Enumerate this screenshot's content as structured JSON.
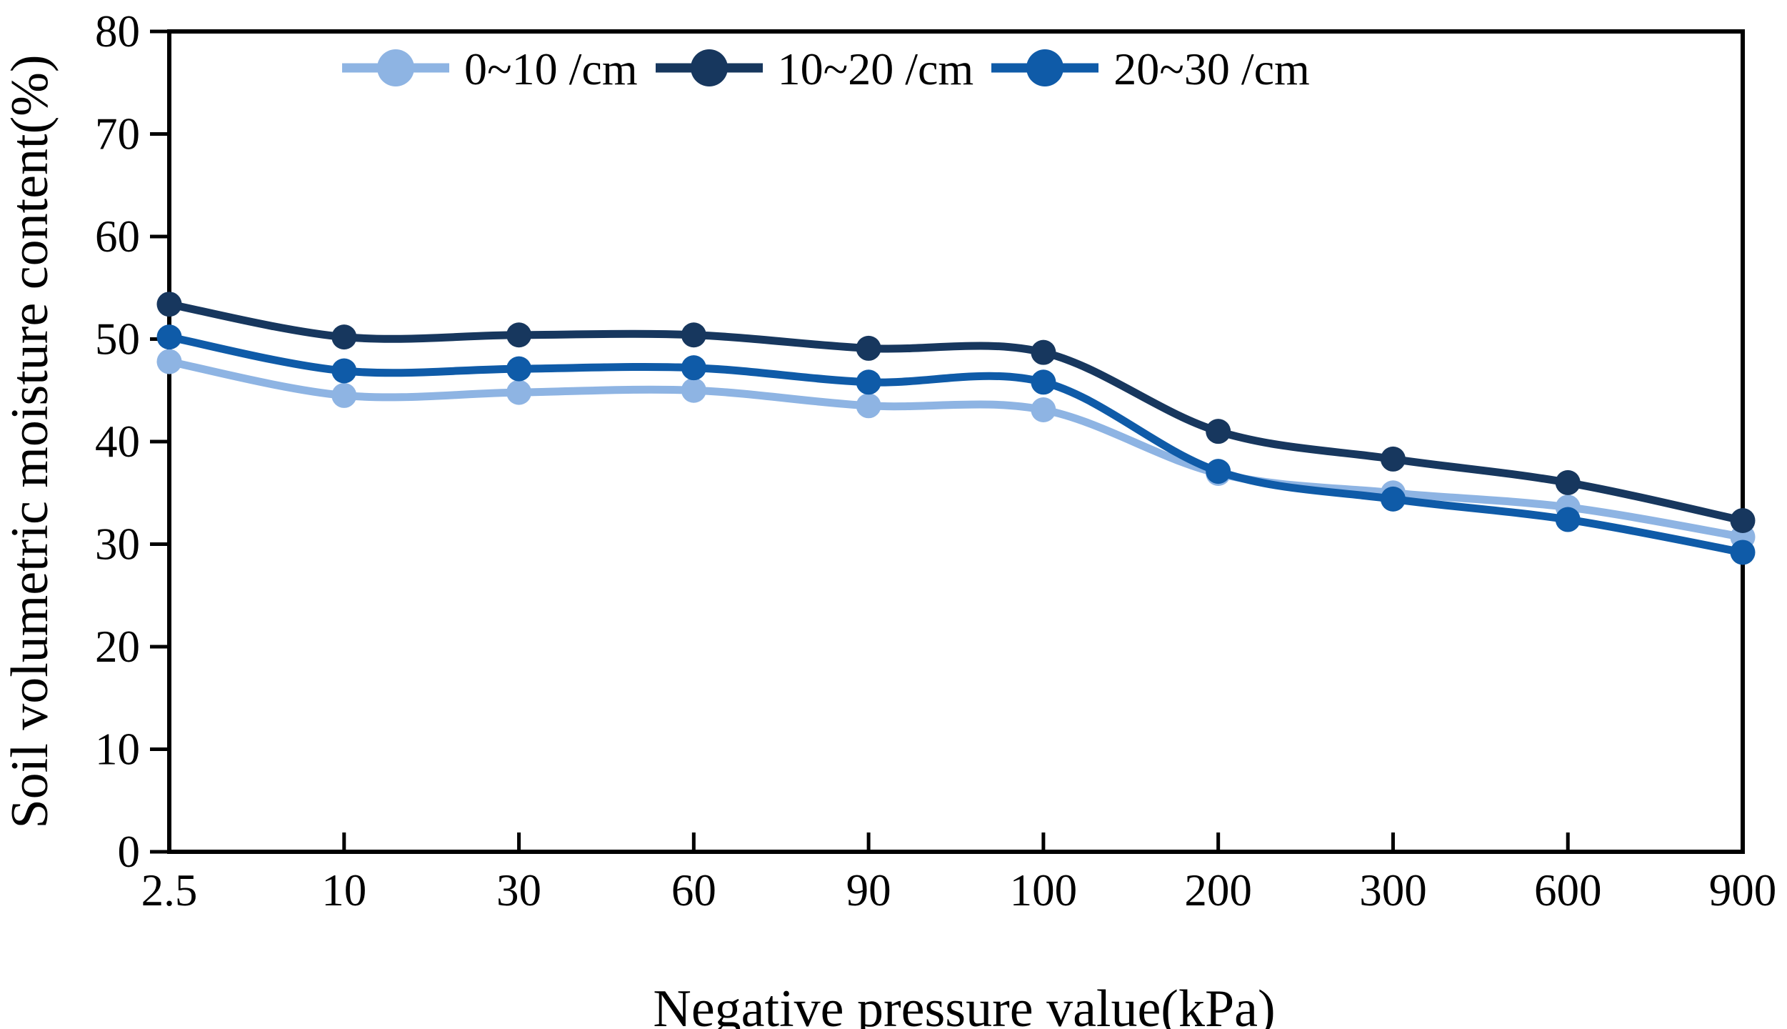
{
  "chart_data": {
    "type": "line",
    "title": "",
    "xlabel": "Negative pressure value(kPa)",
    "ylabel": "Soil volumetric moisture content(%)",
    "categories": [
      "2.5",
      "10",
      "30",
      "60",
      "90",
      "100",
      "200",
      "300",
      "600",
      "900"
    ],
    "y_ticks": [
      "0",
      "10",
      "20",
      "30",
      "40",
      "50",
      "60",
      "70",
      "80"
    ],
    "ylim": [
      0,
      80
    ],
    "grid": false,
    "legend_position": "top",
    "axis_color": "#000000",
    "background_color": "#FFFFFF",
    "series": [
      {
        "name": "0~10 /cm",
        "color": "#8EB4E3",
        "values": [
          47.8,
          44.5,
          44.8,
          45.0,
          43.5,
          43.1,
          36.9,
          35.0,
          33.6,
          30.7
        ]
      },
      {
        "name": "10~20 /cm",
        "color": "#17375E",
        "values": [
          53.4,
          50.2,
          50.4,
          50.4,
          49.1,
          48.7,
          41.0,
          38.3,
          36.0,
          32.3
        ]
      },
      {
        "name": "20~30 /cm",
        "color": "#0F5BA8",
        "values": [
          50.2,
          46.9,
          47.1,
          47.2,
          45.8,
          45.8,
          37.1,
          34.4,
          32.4,
          29.2
        ]
      }
    ]
  }
}
